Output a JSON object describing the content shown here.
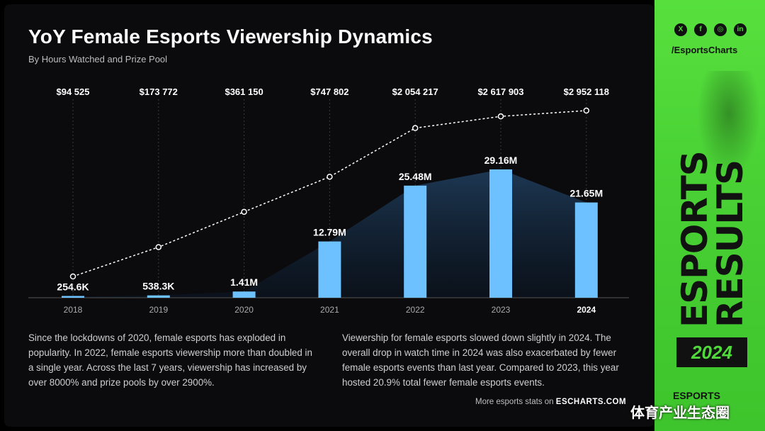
{
  "title": "YoY Female Esports Viewership Dynamics",
  "subtitle": "By Hours Watched and Prize Pool",
  "chart_data": {
    "type": "bar",
    "categories": [
      "2018",
      "2019",
      "2020",
      "2021",
      "2022",
      "2023",
      "2024"
    ],
    "series": [
      {
        "values": [
          0.2546,
          0.5383,
          1.41,
          12.79,
          25.48,
          29.16,
          21.65
        ],
        "labels": [
          "254.6K",
          "538.3K",
          "1.41M",
          "12.79M",
          "25.48M",
          "29.16M",
          "21.65M"
        ]
      },
      {
        "values": [
          94525,
          173772,
          361150,
          747802,
          2054217,
          2617903,
          2952118
        ],
        "labels": [
          "$94 525",
          "$173 772",
          "$361 150",
          "$747 802",
          "$2 054 217",
          "$2 617 903",
          "$2 952 118"
        ]
      }
    ],
    "highlight_category": "2024",
    "colors": {
      "bar": "#6ec1ff",
      "area": "#1e3a57",
      "line": "#ffffff"
    }
  },
  "paragraphs": {
    "left": "Since the lockdowns of 2020, female esports has exploded in popularity. In 2022, female esports viewership more than doubled in a single year. Across the last 7 years, viewership has increased by over 8000% and prize pools by over 2900%.",
    "right": "Viewership for female esports slowed down slightly in 2024. The overall drop in watch time in 2024 was also exacerbated by fewer female esports events than last year.  Compared to 2023, this year hosted 20.9% total fewer female esports events."
  },
  "footer": {
    "text": "More esports stats on",
    "site": "ESCHARTS.COM"
  },
  "side": {
    "social_icons": [
      "x-icon",
      "facebook-icon",
      "instagram-icon",
      "linkedin-icon"
    ],
    "social_glyphs": [
      "X",
      "f",
      "◎",
      "in"
    ],
    "handle": "/EsportsCharts",
    "vertical_1": "ESPORTS",
    "vertical_2": "RESULTS",
    "year": "2024",
    "brand": "ESPORTS"
  },
  "watermark": "体育产业生态圈",
  "colors": {
    "accent": "#4fd93a",
    "background": "#0b0b0d"
  }
}
